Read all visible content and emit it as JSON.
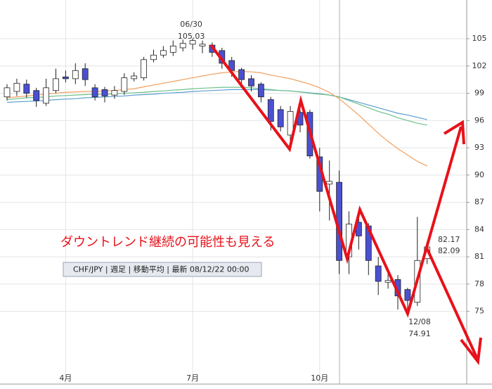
{
  "chart_data": {
    "type": "candlestick",
    "categories": [
      null,
      null,
      null,
      null,
      null,
      null,
      "4月",
      null,
      null,
      null,
      null,
      null,
      null,
      null,
      null,
      null,
      null,
      null,
      null,
      "7月",
      null,
      null,
      null,
      null,
      null,
      null,
      null,
      null,
      null,
      null,
      null,
      null,
      "10月",
      null,
      null,
      null,
      null,
      null,
      null,
      null,
      null,
      null,
      null,
      null
    ],
    "open": [
      98.6,
      99.2,
      100.0,
      99.3,
      97.9,
      99.3,
      100.8,
      100.6,
      101.7,
      99.6,
      99.4,
      98.8,
      99.2,
      100.6,
      100.7,
      102.7,
      103.2,
      103.5,
      104.0,
      104.4,
      104.2,
      104.3,
      103.7,
      102.6,
      101.6,
      100.6,
      100.0,
      98.3,
      97.2,
      94.4,
      96.9,
      96.9,
      92.0,
      89.0,
      89.2,
      81.0,
      84.8,
      84.4,
      80.0,
      78.2,
      78.5,
      77.4,
      76.0,
      80.8
    ],
    "high": [
      100.0,
      100.6,
      100.5,
      99.6,
      100.6,
      101.7,
      101.5,
      102.3,
      102.3,
      100.0,
      99.7,
      99.8,
      101.2,
      101.3,
      103.0,
      103.8,
      104.2,
      104.8,
      104.9,
      105.03,
      104.8,
      104.6,
      104.0,
      103.0,
      101.8,
      101.0,
      100.2,
      98.6,
      97.6,
      97.6,
      97.2,
      97.2,
      93.0,
      91.6,
      90.5,
      86.0,
      85.7,
      84.7,
      81.0,
      79.2,
      79.0,
      77.6,
      85.4,
      82.17
    ],
    "low": [
      98.2,
      98.7,
      98.5,
      97.5,
      97.6,
      99.0,
      100.2,
      100.0,
      99.8,
      98.2,
      98.0,
      98.4,
      98.8,
      100.3,
      100.4,
      102.4,
      102.9,
      103.1,
      103.6,
      103.8,
      103.4,
      103.0,
      101.7,
      100.8,
      99.8,
      99.2,
      98.0,
      94.9,
      94.8,
      93.5,
      94.7,
      91.8,
      86.0,
      85.0,
      79.1,
      79.1,
      81.8,
      79.0,
      76.8,
      77.5,
      75.2,
      74.91,
      75.6,
      80.2
    ],
    "close": [
      99.6,
      100.1,
      99.0,
      98.2,
      99.6,
      100.6,
      100.6,
      101.5,
      100.5,
      98.6,
      98.7,
      99.3,
      100.7,
      100.9,
      102.7,
      103.2,
      103.7,
      104.2,
      104.5,
      104.8,
      104.4,
      103.5,
      102.3,
      101.5,
      100.5,
      99.8,
      98.6,
      95.9,
      95.3,
      97.0,
      95.5,
      92.1,
      88.2,
      89.3,
      80.6,
      84.6,
      83.3,
      80.6,
      78.3,
      78.4,
      76.7,
      76.2,
      80.6,
      82.09
    ],
    "up_color": "#ffffff",
    "down_color": "#4b50d2",
    "lines": [
      {
        "color": "#5a9fd0",
        "values": [
          98.0,
          98.05,
          98.1,
          98.15,
          98.2,
          98.3,
          98.35,
          98.4,
          98.5,
          98.55,
          98.6,
          98.65,
          98.7,
          98.8,
          98.85,
          98.9,
          99.0,
          99.05,
          99.1,
          99.2,
          99.25,
          99.3,
          99.35,
          99.4,
          99.4,
          99.4,
          99.4,
          99.35,
          99.3,
          99.25,
          99.15,
          99.05,
          98.95,
          98.8,
          98.6,
          98.3,
          98.0,
          97.7,
          97.4,
          97.1,
          96.8,
          96.6,
          96.35,
          96.1
        ]
      },
      {
        "color": "#6cc08a",
        "values": [
          98.3,
          98.4,
          98.5,
          98.55,
          98.6,
          98.7,
          98.75,
          98.8,
          98.85,
          98.9,
          98.9,
          98.95,
          99.0,
          99.05,
          99.1,
          99.2,
          99.25,
          99.35,
          99.4,
          99.5,
          99.55,
          99.6,
          99.65,
          99.65,
          99.65,
          99.6,
          99.5,
          99.4,
          99.3,
          99.25,
          99.15,
          99.0,
          98.9,
          98.8,
          98.6,
          98.2,
          97.8,
          97.4,
          97.0,
          96.7,
          96.3,
          96.0,
          95.7,
          95.5
        ]
      },
      {
        "color": "#f0a060",
        "values": [
          98.5,
          98.6,
          98.7,
          98.8,
          98.9,
          99.0,
          99.1,
          99.15,
          99.2,
          99.2,
          99.25,
          99.3,
          99.4,
          99.5,
          99.7,
          99.9,
          100.1,
          100.3,
          100.5,
          100.7,
          100.9,
          101.1,
          101.25,
          101.35,
          101.4,
          101.35,
          101.25,
          101.0,
          100.8,
          100.6,
          100.3,
          100.0,
          99.6,
          99.1,
          98.4,
          97.5,
          96.6,
          95.6,
          94.6,
          93.7,
          92.9,
          92.2,
          91.5,
          91.0
        ]
      }
    ],
    "ylim": [
      67,
      109.26
    ],
    "yticks": [
      75,
      78,
      81,
      84,
      87,
      90,
      93,
      96,
      99,
      102,
      105
    ],
    "grid": true,
    "annotations": [
      "06/30",
      "12/08"
    ],
    "comment": "ダウントレンド継続の可能性も見える",
    "info_bar": "CHF/JPY | 週足 | 移動平均 | 最新 08/12/22 00:00"
  }
}
